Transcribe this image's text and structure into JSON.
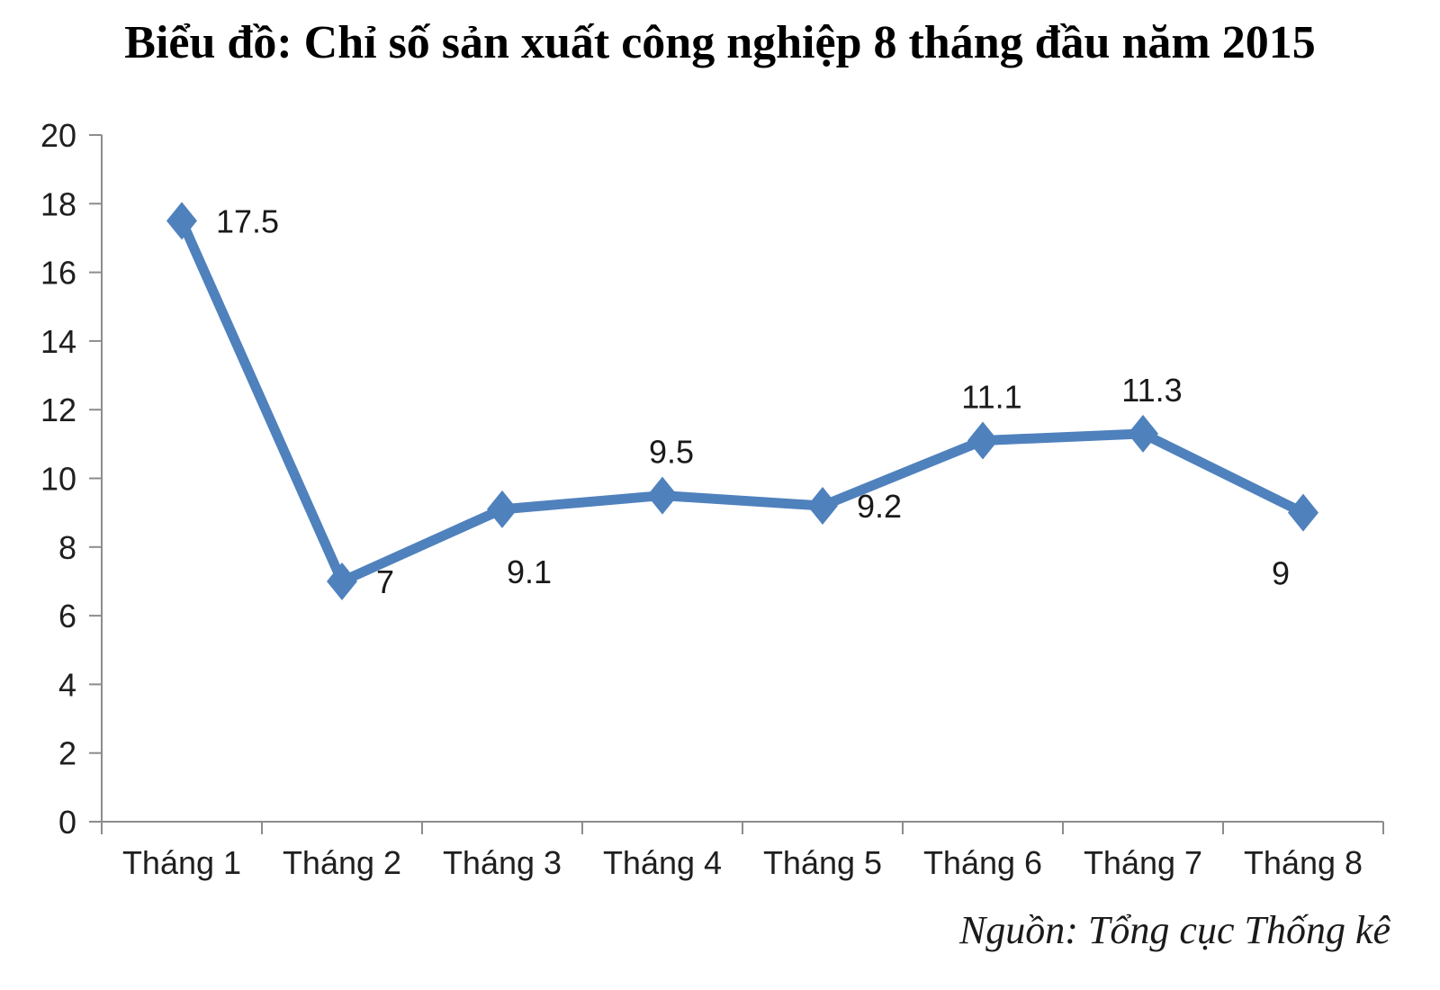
{
  "title": "Biểu đồ: Chỉ số sản xuất công nghiệp 8 tháng đầu năm 2015",
  "source": "Nguồn: Tổng cục Thống kê",
  "colors": {
    "line": "#4f81bd",
    "marker": "#4f81bd",
    "axis": "#8c8c8c",
    "text": "#1f1f1f"
  },
  "chart_data": {
    "type": "line",
    "title": "Biểu đồ: Chỉ số sản xuất công nghiệp 8 tháng đầu năm 2015",
    "categories": [
      "Tháng 1",
      "Tháng 2",
      "Tháng 3",
      "Tháng 4",
      "Tháng 5",
      "Tháng 6",
      "Tháng 7",
      "Tháng 8"
    ],
    "values": [
      17.5,
      7,
      9.1,
      9.5,
      9.2,
      11.1,
      11.3,
      9
    ],
    "data_labels": [
      "17.5",
      "7",
      "9.1",
      "9.5",
      "9.2",
      "11.1",
      "11.3",
      "9"
    ],
    "label_positions": [
      "right",
      "right",
      "below-right",
      "above",
      "right",
      "above",
      "above",
      "below-left"
    ],
    "xlabel": "",
    "ylabel": "",
    "ylim": [
      0,
      20
    ],
    "yticks": [
      0,
      2,
      4,
      6,
      8,
      10,
      12,
      14,
      16,
      18,
      20
    ],
    "grid": false,
    "legend": "none",
    "marker_shape": "diamond",
    "annotations": [
      "Nguồn: Tổng cục Thống kê"
    ]
  }
}
